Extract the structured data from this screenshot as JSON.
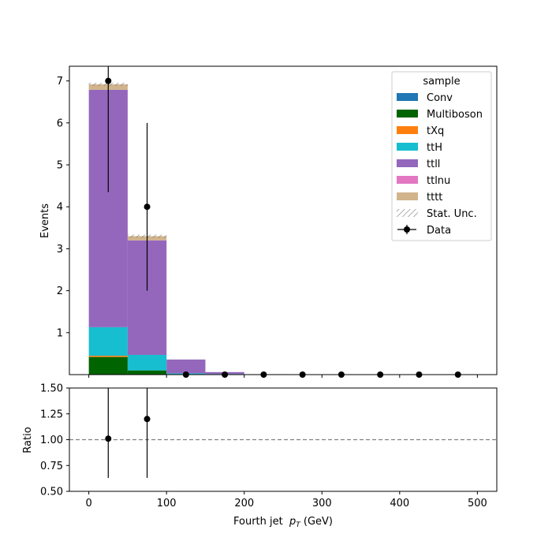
{
  "chart_data": [
    {
      "type": "bar",
      "stacked": true,
      "bin_edges": [
        0,
        50,
        100,
        150,
        200,
        250,
        300,
        350,
        400,
        450,
        500
      ],
      "ylabel": "Events",
      "xlim": [
        -25,
        525
      ],
      "ylim": [
        0,
        7.35
      ],
      "yticks": [
        1,
        2,
        3,
        4,
        5,
        6,
        7
      ],
      "legend_title": "sample",
      "legend_position": "top-right",
      "series": [
        {
          "name": "Conv",
          "color": "#1f77b4",
          "values": [
            0,
            0,
            0,
            0,
            0,
            0,
            0,
            0,
            0,
            0
          ]
        },
        {
          "name": "Multiboson",
          "color": "#006400",
          "values": [
            0.42,
            0.1,
            0.01,
            0.005,
            0,
            0,
            0,
            0,
            0,
            0
          ]
        },
        {
          "name": "tXq",
          "color": "#ff7f0e",
          "values": [
            0.03,
            0,
            0,
            0,
            0,
            0,
            0,
            0,
            0,
            0
          ]
        },
        {
          "name": "ttH",
          "color": "#17becf",
          "values": [
            0.68,
            0.37,
            0.02,
            0.01,
            0.01,
            0,
            0,
            0,
            0,
            0
          ]
        },
        {
          "name": "ttll",
          "color": "#9467bd",
          "values": [
            5.66,
            2.73,
            0.33,
            0.045,
            0,
            0,
            0,
            0,
            0,
            0
          ]
        },
        {
          "name": "ttlnu",
          "color": "#e377c2",
          "values": [
            0,
            0,
            0,
            0,
            0,
            0,
            0,
            0,
            0,
            0
          ]
        },
        {
          "name": "tttt",
          "color": "#d2b48c",
          "values": [
            0.13,
            0.1,
            0,
            0,
            0,
            0,
            0,
            0,
            0,
            0
          ]
        }
      ],
      "stat_unc_label": "Stat. Unc.",
      "data": {
        "name": "Data",
        "x": [
          25,
          75,
          125,
          175,
          225,
          275,
          325,
          375,
          425,
          475
        ],
        "values": [
          7,
          4,
          0,
          0,
          0,
          0,
          0,
          0,
          0,
          0
        ],
        "err_up": [
          2.65,
          2.0,
          0,
          0,
          0,
          0,
          0,
          0,
          0,
          0
        ],
        "err_down": [
          2.65,
          2.0,
          0,
          0,
          0,
          0,
          0,
          0,
          0,
          0
        ]
      }
    },
    {
      "type": "scatter",
      "ylabel": "Ratio",
      "xlabel": "Fourth jet  pT (GeV)",
      "xlim": [
        -25,
        525
      ],
      "ylim": [
        0.5,
        1.5
      ],
      "yticks": [
        "0.50",
        "0.75",
        "1.00",
        "1.25",
        "1.50"
      ],
      "xticks": [
        0,
        100,
        200,
        300,
        400,
        500
      ],
      "reference_line": 1.0,
      "x": [
        25,
        75
      ],
      "values": [
        1.01,
        1.2
      ],
      "err_up": [
        0.49,
        0.57
      ],
      "err_down": [
        0.38,
        0.57
      ]
    }
  ]
}
